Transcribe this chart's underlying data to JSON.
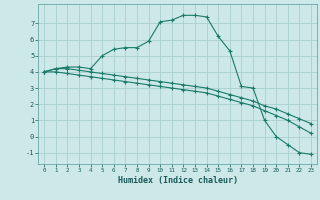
{
  "xlabel": "Humidex (Indice chaleur)",
  "background_color": "#cce8e8",
  "grid_color": "#aad0d0",
  "line_color": "#1a7a6a",
  "xlim": [
    -0.5,
    23.5
  ],
  "ylim": [
    -1.7,
    8.2
  ],
  "yticks": [
    -1,
    0,
    1,
    2,
    3,
    4,
    5,
    6,
    7
  ],
  "xticks": [
    0,
    1,
    2,
    3,
    4,
    5,
    6,
    7,
    8,
    9,
    10,
    11,
    12,
    13,
    14,
    15,
    16,
    17,
    18,
    19,
    20,
    21,
    22,
    23
  ],
  "series": [
    {
      "x": [
        0,
        1,
        2,
        3,
        4,
        5,
        6,
        7,
        8,
        9,
        10,
        11,
        12,
        13,
        14,
        15,
        16,
        17,
        18,
        19,
        20,
        21,
        22,
        23
      ],
      "y": [
        4.0,
        4.2,
        4.3,
        4.3,
        4.2,
        5.0,
        5.4,
        5.5,
        5.5,
        5.9,
        7.1,
        7.2,
        7.5,
        7.5,
        7.4,
        6.2,
        5.3,
        3.1,
        3.0,
        1.0,
        0.0,
        -0.5,
        -1.0,
        -1.1
      ]
    },
    {
      "x": [
        0,
        1,
        2,
        3,
        4,
        5,
        6,
        7,
        8,
        9,
        10,
        11,
        12,
        13,
        14,
        15,
        16,
        17,
        18,
        19,
        20,
        21,
        22,
        23
      ],
      "y": [
        4.0,
        4.2,
        4.2,
        4.1,
        4.0,
        3.9,
        3.8,
        3.7,
        3.6,
        3.5,
        3.4,
        3.3,
        3.2,
        3.1,
        3.0,
        2.8,
        2.6,
        2.4,
        2.2,
        1.9,
        1.7,
        1.4,
        1.1,
        0.8
      ]
    },
    {
      "x": [
        0,
        1,
        2,
        3,
        4,
        5,
        6,
        7,
        8,
        9,
        10,
        11,
        12,
        13,
        14,
        15,
        16,
        17,
        18,
        19,
        20,
        21,
        22,
        23
      ],
      "y": [
        4.0,
        4.0,
        3.9,
        3.8,
        3.7,
        3.6,
        3.5,
        3.4,
        3.3,
        3.2,
        3.1,
        3.0,
        2.9,
        2.8,
        2.7,
        2.5,
        2.3,
        2.1,
        1.9,
        1.6,
        1.3,
        1.0,
        0.6,
        0.2
      ]
    }
  ]
}
